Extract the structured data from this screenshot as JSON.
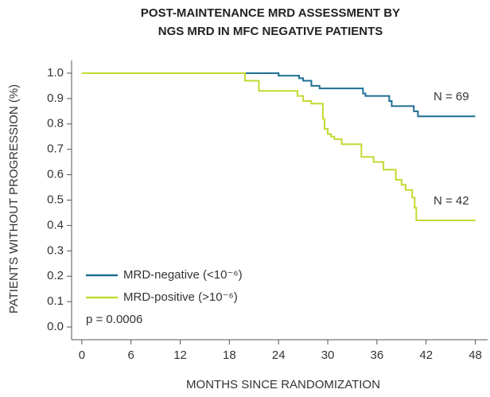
{
  "chart_data": {
    "type": "step",
    "title": [
      "POST-MAINTENANCE MRD ASSESSMENT BY",
      "NGS MRD IN MFC NEGATIVE PATIENTS"
    ],
    "x_label": "MONTHS SINCE RANDOMIZATION",
    "y_label": "PATIENTS WITHOUT PROGRESSION (%)",
    "xlim": [
      -1.25,
      49.5
    ],
    "ylim": [
      -0.05,
      1.05
    ],
    "xticks": [
      0,
      6,
      12,
      18,
      24,
      30,
      36,
      42,
      48
    ],
    "yticks": [
      {
        "value": 0,
        "label": "0.0"
      },
      0.1,
      0.2,
      0.3,
      0.4,
      0.5,
      0.6,
      0.7,
      0.8,
      0.9,
      {
        "value": 1,
        "label": "1.0"
      }
    ],
    "series": [
      {
        "name": "MRD-negative (<10⁻⁶)",
        "color": "#1f6e93",
        "x": [
          0,
          24,
          26.5,
          27,
          28,
          29,
          34.3,
          34.6,
          37.5,
          37.8,
          40.5,
          41,
          48
        ],
        "values": [
          1.0,
          0.99,
          0.98,
          0.97,
          0.95,
          0.94,
          0.92,
          0.91,
          0.89,
          0.87,
          0.85,
          0.83,
          0.83
        ]
      },
      {
        "name": "MRD-positive (>10⁻⁶)",
        "color": "#c5d832",
        "x": [
          0,
          19.9,
          21.6,
          26.3,
          27,
          28,
          29.4,
          29.6,
          30,
          30.4,
          30.8,
          31.7,
          34.1,
          35.6,
          36.8,
          38.3,
          39,
          39.5,
          40.3,
          40.6,
          40.8,
          48
        ],
        "values": [
          1.0,
          0.97,
          0.93,
          0.91,
          0.89,
          0.88,
          0.82,
          0.78,
          0.76,
          0.75,
          0.74,
          0.72,
          0.67,
          0.65,
          0.62,
          0.58,
          0.56,
          0.54,
          0.51,
          0.47,
          0.42,
          0.42
        ]
      }
    ],
    "annotations": [
      "N = 69",
      "N = 42",
      "p = 0.0006"
    ]
  }
}
